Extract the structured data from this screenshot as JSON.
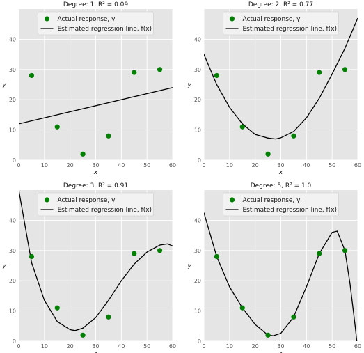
{
  "chart_data": [
    {
      "type": "scatter",
      "title": "Degree: 1, R² = 0.09",
      "xlabel": "x",
      "ylabel": "y",
      "xlim": [
        0,
        60
      ],
      "ylim": [
        0,
        50
      ],
      "xticks": [
        0,
        10,
        20,
        30,
        40,
        50,
        60
      ],
      "yticks": [
        0,
        10,
        20,
        30,
        40
      ],
      "grid": true,
      "legend": "top-center",
      "series": [
        {
          "name": "Actual response, yᵢ",
          "kind": "points",
          "color": "#008000",
          "x": [
            5,
            15,
            25,
            35,
            45,
            55
          ],
          "y": [
            28,
            11,
            2,
            8,
            29,
            30
          ]
        },
        {
          "name": "Estimated regression line, f(x)",
          "kind": "line",
          "color": "#000000",
          "x": [
            0,
            60
          ],
          "y": [
            12,
            24
          ]
        }
      ]
    },
    {
      "type": "scatter",
      "title": "Degree: 2, R² = 0.77",
      "xlabel": "x",
      "ylabel": "y",
      "xlim": [
        0,
        60
      ],
      "ylim": [
        0,
        50
      ],
      "xticks": [
        0,
        10,
        20,
        30,
        40,
        50,
        60
      ],
      "yticks": [
        0,
        10,
        20,
        30,
        40
      ],
      "grid": true,
      "legend": "top-center",
      "series": [
        {
          "name": "Actual response, yᵢ",
          "kind": "points",
          "color": "#008000",
          "x": [
            5,
            15,
            25,
            35,
            45,
            55
          ],
          "y": [
            28,
            11,
            2,
            8,
            29,
            30
          ]
        },
        {
          "name": "Estimated regression line, f(x)",
          "kind": "line",
          "color": "#000000",
          "x": [
            0,
            5,
            10,
            15,
            20,
            25,
            28,
            30,
            35,
            40,
            45,
            50,
            55,
            60
          ],
          "y": [
            35,
            25,
            17.5,
            12,
            8.5,
            7.3,
            7,
            7.4,
            9.5,
            14,
            20.5,
            28.5,
            37,
            47
          ]
        }
      ]
    },
    {
      "type": "scatter",
      "title": "Degree: 3, R² = 0.91",
      "xlabel": "x",
      "ylabel": "y",
      "xlim": [
        0,
        60
      ],
      "ylim": [
        0,
        50
      ],
      "xticks": [
        0,
        10,
        20,
        30,
        40,
        50,
        60
      ],
      "yticks": [
        0,
        10,
        20,
        30,
        40
      ],
      "grid": true,
      "legend": "top-center",
      "series": [
        {
          "name": "Actual response, yᵢ",
          "kind": "points",
          "color": "#008000",
          "x": [
            5,
            15,
            25,
            35,
            45,
            55
          ],
          "y": [
            28,
            11,
            2,
            8,
            29,
            30
          ]
        },
        {
          "name": "Estimated regression line, f(x)",
          "kind": "line",
          "color": "#000000",
          "x": [
            0,
            5,
            10,
            15,
            20,
            22,
            25,
            30,
            35,
            40,
            45,
            50,
            55,
            58,
            60
          ],
          "y": [
            50,
            26,
            13.5,
            6.5,
            3.8,
            3.5,
            4.3,
            7.8,
            13.5,
            20,
            25.5,
            29.5,
            31.8,
            32.2,
            31.5
          ]
        }
      ]
    },
    {
      "type": "scatter",
      "title": "Degree: 5, R² = 1.0",
      "xlabel": "x",
      "ylabel": "y",
      "xlim": [
        0,
        60
      ],
      "ylim": [
        0,
        50
      ],
      "xticks": [
        0,
        10,
        20,
        30,
        40,
        50,
        60
      ],
      "yticks": [
        0,
        10,
        20,
        30,
        40
      ],
      "grid": true,
      "legend": "top-center",
      "series": [
        {
          "name": "Actual response, yᵢ",
          "kind": "points",
          "color": "#008000",
          "x": [
            5,
            15,
            25,
            35,
            45,
            55
          ],
          "y": [
            28,
            11,
            2,
            8,
            29,
            30
          ]
        },
        {
          "name": "Estimated regression line, f(x)",
          "kind": "line",
          "color": "#000000",
          "x": [
            0,
            5,
            10,
            15,
            20,
            25,
            27,
            30,
            35,
            40,
            45,
            50,
            52,
            55,
            57,
            59,
            60
          ],
          "y": [
            42.5,
            28,
            18,
            11,
            5.5,
            2,
            1.8,
            2.6,
            8,
            18,
            29,
            36,
            36.4,
            30,
            19,
            5,
            -3
          ]
        }
      ]
    }
  ]
}
